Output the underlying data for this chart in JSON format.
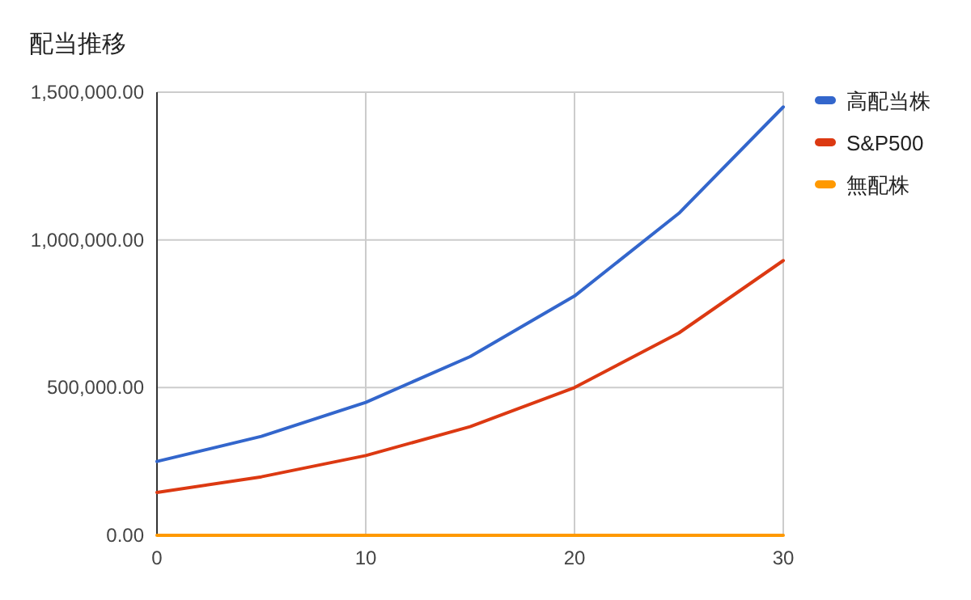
{
  "chart_data": {
    "type": "line",
    "title": "配当推移",
    "x": [
      0,
      5,
      10,
      15,
      20,
      25,
      30
    ],
    "series": [
      {
        "name": "高配当株",
        "color": "#3366cc",
        "values": [
          250000,
          335000,
          450000,
          605000,
          810000,
          1090000,
          1450000
        ]
      },
      {
        "name": "S&P500",
        "color": "#dc3912",
        "values": [
          145000,
          198000,
          270000,
          368000,
          500000,
          685000,
          930000
        ]
      },
      {
        "name": "無配株",
        "color": "#ff9900",
        "values": [
          0,
          0,
          0,
          0,
          0,
          0,
          0
        ]
      }
    ],
    "xlim": [
      0,
      30
    ],
    "xticks": [
      0,
      10,
      20,
      30
    ],
    "ylim": [
      0,
      1500000
    ],
    "yticks": [
      {
        "value": 0,
        "label": "0.00"
      },
      {
        "value": 500000,
        "label": "500,000.00"
      },
      {
        "value": 1000000,
        "label": "1,000,000.00"
      },
      {
        "value": 1500000,
        "label": "1,500,000.00"
      }
    ],
    "grid": true,
    "legend": "top right",
    "marker": "none",
    "line_style": "solid"
  }
}
